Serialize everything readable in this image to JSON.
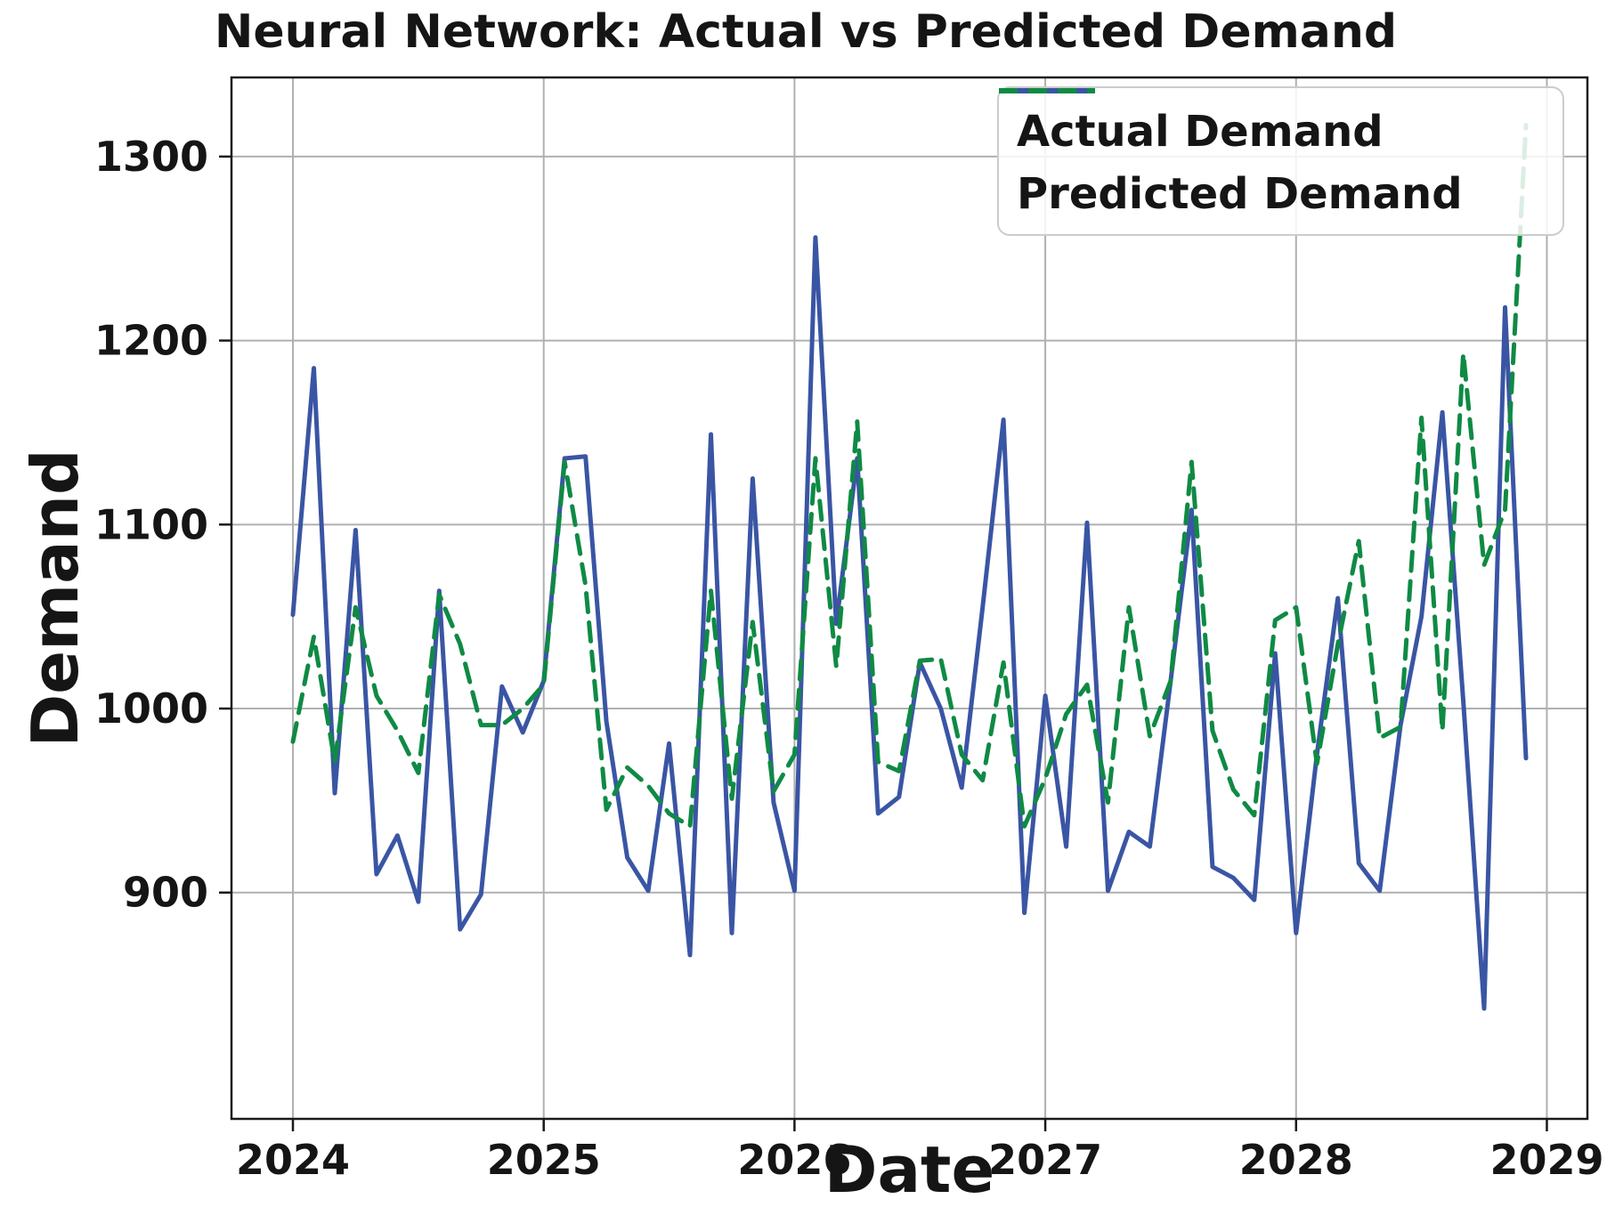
{
  "title": "Neural Network: Actual vs Predicted Demand",
  "x_label": "Date",
  "y_label": "Demand",
  "legend": {
    "position": "upper right",
    "items": [
      {
        "label": "Actual Demand",
        "style": "solid"
      },
      {
        "label": "Predicted Demand",
        "style": "dashed"
      }
    ]
  },
  "colors": {
    "actual": "#3A55A4",
    "predicted": "#0F8A44",
    "grid": "#B0B0B0",
    "spine": "#1A1A1A",
    "text": "#151515",
    "legend_border": "#CCCCCC"
  },
  "chart_data": {
    "type": "line",
    "title": "Neural Network: Actual vs Predicted Demand",
    "xlabel": "Date",
    "ylabel": "Demand",
    "grid": true,
    "legend_position": "upper right",
    "ylim": [
      777,
      1343
    ],
    "y_ticks": [
      900,
      1000,
      1100,
      1200,
      1300
    ],
    "x_tick_labels": [
      "2024",
      "2025",
      "2026",
      "2027",
      "2028",
      "2029"
    ],
    "x_tick_month_index": [
      0,
      12,
      24,
      36,
      48,
      60
    ],
    "x": [
      "2024-01",
      "2024-02",
      "2024-03",
      "2024-04",
      "2024-05",
      "2024-06",
      "2024-07",
      "2024-08",
      "2024-09",
      "2024-10",
      "2024-11",
      "2024-12",
      "2025-01",
      "2025-02",
      "2025-03",
      "2025-04",
      "2025-05",
      "2025-06",
      "2025-07",
      "2025-08",
      "2025-09",
      "2025-10",
      "2025-11",
      "2025-12",
      "2026-01",
      "2026-02",
      "2026-03",
      "2026-04",
      "2026-05",
      "2026-06",
      "2026-07",
      "2026-08",
      "2026-09",
      "2026-10",
      "2026-11",
      "2026-12",
      "2027-01",
      "2027-02",
      "2027-03",
      "2027-04",
      "2027-05",
      "2027-06",
      "2027-07",
      "2027-08",
      "2027-09",
      "2027-10",
      "2027-11",
      "2027-12",
      "2028-01",
      "2028-02",
      "2028-03",
      "2028-04",
      "2028-05",
      "2028-06",
      "2028-07",
      "2028-08",
      "2028-09",
      "2028-10",
      "2028-11",
      "2028-12"
    ],
    "series": [
      {
        "name": "Actual Demand",
        "color": "#3A55A4",
        "dash": null,
        "values": [
          1051,
          1185,
          954,
          1097,
          910,
          931,
          895,
          1064,
          880,
          899,
          1012,
          987,
          1015,
          1136,
          1137,
          993,
          919,
          901,
          981,
          866,
          1149,
          878,
          1125,
          949,
          901,
          1256,
          1046,
          1136,
          943,
          952,
          1025,
          1000,
          957,
          1055,
          1157,
          889,
          1007,
          925,
          1101,
          901,
          933,
          925,
          1015,
          1108,
          914,
          908,
          896,
          1030,
          878,
          975,
          1060,
          916,
          901,
          991,
          1050,
          1161,
          1004,
          837,
          1218,
          973
        ]
      },
      {
        "name": "Predicted Demand",
        "color": "#0F8A44",
        "dash": [
          21,
          12
        ],
        "values": [
          982,
          1039,
          971,
          1055,
          1007,
          988,
          965,
          1062,
          1035,
          991,
          991,
          1000,
          1013,
          1134,
          1067,
          945,
          968,
          958,
          943,
          936,
          1064,
          951,
          1047,
          955,
          975,
          1136,
          1023,
          1156,
          971,
          966,
          1026,
          1027,
          975,
          961,
          1025,
          936,
          962,
          997,
          1013,
          949,
          1055,
          985,
          1015,
          1134,
          988,
          956,
          942,
          1048,
          1055,
          970,
          1035,
          1091,
          984,
          990,
          1158,
          988,
          1193,
          1078,
          1108,
          1317
        ]
      }
    ]
  }
}
